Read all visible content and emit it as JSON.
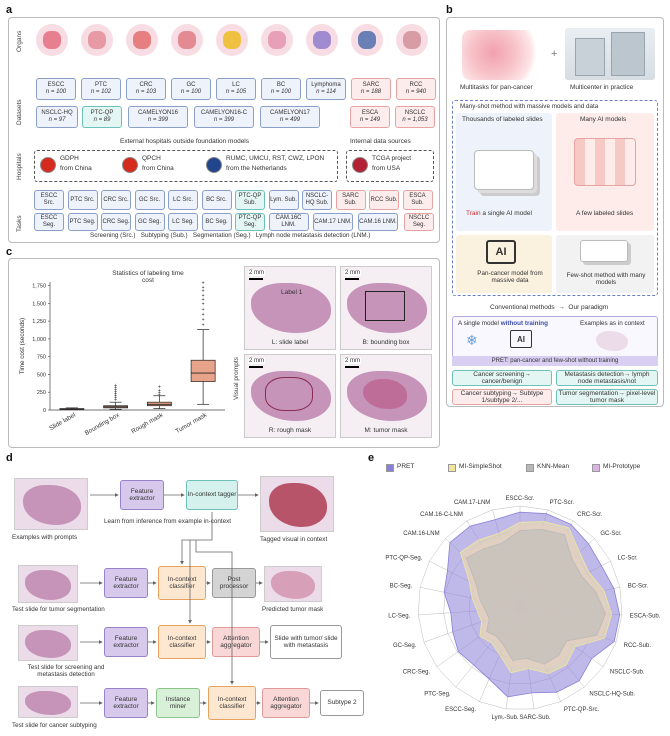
{
  "panel_labels": {
    "a": "a",
    "b": "b",
    "c": "c",
    "d": "d",
    "e": "e"
  },
  "a": {
    "row_labels": {
      "organs": "Organs",
      "datasets": "Datasets",
      "hospitals": "Hospitals",
      "tasks": "Tasks"
    },
    "datasets_row1": [
      {
        "name": "ESCC",
        "n": "n = 100"
      },
      {
        "name": "PTC",
        "n": "n = 102"
      },
      {
        "name": "CRC",
        "n": "n = 103"
      },
      {
        "name": "GC",
        "n": "n = 100"
      },
      {
        "name": "LC",
        "n": "n = 105"
      },
      {
        "name": "BC",
        "n": "n = 100"
      },
      {
        "name": "Lymphoma",
        "n": "n = 114"
      },
      {
        "name": "SARC",
        "n": "n = 188"
      },
      {
        "name": "RCC",
        "n": "n = 940"
      }
    ],
    "datasets_row2": [
      {
        "name": "NSCLC-HQ",
        "n": "n = 97"
      },
      {
        "name": "PTC-QP",
        "n": "n = 89"
      },
      {
        "name": "CAMELYON16",
        "n": "n = 399"
      },
      {
        "name": "CAMELYON16-C",
        "n": "n = 399"
      },
      {
        "name": "CAMELYON17",
        "n": "n = 499"
      },
      {
        "name": "ESCA",
        "n": "n = 149"
      },
      {
        "name": "NSCLC",
        "n": "n = 1,053"
      }
    ],
    "external_label": "External hospitals outside foundation models",
    "internal_label": "Internal data sources",
    "hospitals": [
      {
        "name": "GDPH",
        "sub": "from China"
      },
      {
        "name": "QPCH",
        "sub": "from China"
      },
      {
        "name": "RUMC, UMCU, RST, CWZ, LPON",
        "sub": "from the Netherlands"
      },
      {
        "name": "TCGA project",
        "sub": "from USA"
      }
    ],
    "tasks_row1": [
      "ESCC Src.",
      "PTC Src.",
      "CRC Src.",
      "GC Src.",
      "LC Src.",
      "BC Src.",
      "PTC-QP Sub.",
      "Lym. Sub.",
      "NSCLC-HQ Sub.",
      "SARC Sub.",
      "RCC Sub.",
      "ESCA Sub."
    ],
    "tasks_row2": [
      "ESCC Seg.",
      "PTC Seg.",
      "CRC Seg.",
      "GC Seg.",
      "LC Seg.",
      "BC Seg.",
      "PTC-QP Seg.",
      "CAM.16C LNM.",
      "CAM.17 LNM.",
      "CAM.16 LNM.",
      "NSCLC Seg."
    ],
    "legend": "Screening (Src.)   Subtyping (Sub.)   Segmentation (Seg.)   Lymph node metastasis detection (LNM.)"
  },
  "b": {
    "multitask": "Multitasks for pan-cancer",
    "multicenter": "Multicenter in practice",
    "header": "Many-shot method with massive models and data",
    "thousands": "Thousands of labeled slides",
    "many_models": "Many AI models",
    "train_red": "Train",
    "train_rest": "a single AI model",
    "few_labeled": "A few labeled slides",
    "ai": "AI",
    "pan_cancer_model": "Pan-cancer model from massive data",
    "few_shot_method": "Few-shot method with many models",
    "conventional": "Conventional methods  →  Our paradigm",
    "single_model": "A single model",
    "without_training": "without training",
    "examples_context": "Examples as in context",
    "pret_banner": "PRET: pan-cancer and few-shot without training",
    "tags": [
      "Cancer screening→ cancer/benign",
      "Metastasis detection→ lymph node metastasis/not",
      "Cancer subtyping→ Subtype 1/subtype 2/...",
      "Tumor segmentation→ pixel-level tumor mask"
    ]
  },
  "c": {
    "chart_title": "Statistics of labeling time cost",
    "visual_prompts": "Visual prompts",
    "scale": "2 mm",
    "label_l": "Label 1",
    "captions": [
      "L: slide label",
      "B: bounding box",
      "R: rough mask",
      "M: tumor mask"
    ]
  },
  "chart_data": [
    {
      "type": "box",
      "title": "Statistics of labeling time cost",
      "ylabel": "Time cost (seconds)",
      "ylim": [
        0,
        1800
      ],
      "yticks": [
        0,
        250,
        500,
        750,
        1000,
        1250,
        1500,
        1750
      ],
      "categories": [
        "Slide label",
        "Bounding box",
        "Rough mask",
        "Tumor mask"
      ],
      "boxes": [
        {
          "min": 5,
          "q1": 10,
          "median": 15,
          "q3": 20,
          "max": 30,
          "outliers": []
        },
        {
          "min": 10,
          "q1": 30,
          "median": 45,
          "q3": 60,
          "max": 110,
          "outliers": [
            150,
            180,
            210,
            240,
            260,
            290,
            320,
            350
          ]
        },
        {
          "min": 20,
          "q1": 60,
          "median": 80,
          "q3": 110,
          "max": 200,
          "outliers": [
            220,
            250,
            280,
            330
          ]
        },
        {
          "min": 80,
          "q1": 400,
          "median": 520,
          "q3": 700,
          "max": 1130,
          "outliers": [
            1200,
            1280,
            1350,
            1420,
            1500,
            1560,
            1620,
            1680,
            1730,
            1790
          ]
        }
      ],
      "box_color": "#e8a48a"
    },
    {
      "type": "radar",
      "series": [
        {
          "name": "PRET",
          "color": "#8a7fd8"
        },
        {
          "name": "MI-SimpleShot",
          "color": "#f3e5a0"
        },
        {
          "name": "KNN-Mean",
          "color": "#b9b9b9"
        },
        {
          "name": "MI-Prototype",
          "color": "#d9b2e6"
        }
      ],
      "axes": [
        "ESCC-Scr.",
        "PTC-Scr.",
        "CRC-Scr.",
        "GC-Scr.",
        "LC-Scr.",
        "BC-Scr.",
        "ESCA-Sub.",
        "RCC-Sub.",
        "NSCLC-Sub.",
        "NSCLC-HQ-Sub.",
        "PTC-QP-Src.",
        "SARC-Sub.",
        "Lym.-Sub.",
        "ESCC-Seg.",
        "PTC-Seg.",
        "CRC-Seg.",
        "GC-Seg.",
        "LC-Seg.",
        "BC-Seg.",
        "PTC-QP-Seg.",
        "CAM.16-LNM",
        "CAM.16-C-LNM",
        "CAM.17-LNM"
      ],
      "rlim": [
        50,
        100
      ],
      "values": {
        "PRET": [
          97,
          98,
          98,
          96,
          95,
          97,
          99,
          99,
          93,
          96,
          95,
          92,
          94,
          88,
          86,
          87,
          85,
          84,
          88,
          90,
          97,
          97,
          95
        ],
        "MI-SimpleShot": [
          92,
          94,
          96,
          90,
          88,
          92,
          95,
          94,
          83,
          86,
          85,
          80,
          82,
          75,
          72,
          74,
          70,
          71,
          74,
          78,
          90,
          89,
          88
        ],
        "KNN-Mean": [
          88,
          90,
          92,
          85,
          84,
          88,
          92,
          90,
          78,
          80,
          80,
          75,
          76,
          70,
          68,
          70,
          66,
          67,
          70,
          74,
          86,
          84,
          83
        ],
        "MI-Prototype": [
          90,
          92,
          94,
          88,
          86,
          90,
          93,
          92,
          80,
          83,
          82,
          78,
          79,
          72,
          70,
          72,
          68,
          69,
          72,
          76,
          88,
          86,
          85
        ]
      }
    }
  ],
  "d": {
    "examples": "Examples with prompts",
    "feature_extractor": "Feature extractor",
    "in_context_tagger": "In-context tagger",
    "learn": "Learn from inference from example in-context",
    "tagged": "Tagged visual in context",
    "in_context_classifier": "In-context classifier",
    "post_processor": "Post processor",
    "predicted_mask": "Predicted tumor mask",
    "test_seg": "Test slide for tumor segmentation",
    "attention_aggregator": "Attention aggregator",
    "slide_tumor": "Slide with tumor/ slide with metastasis",
    "test_screen": "Test slide for screening and metastasis detection",
    "instance_miner": "Instance miner",
    "subtype2": "Subtype 2",
    "test_sub": "Test slide for cancer subtyping"
  }
}
